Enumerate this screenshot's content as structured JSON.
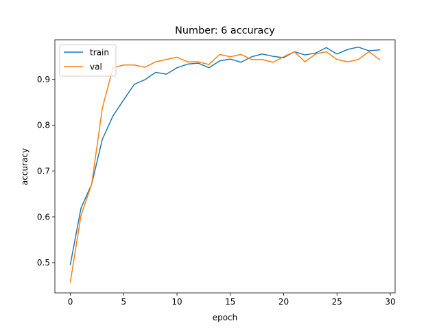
{
  "chart_data": {
    "type": "line",
    "title": "Number: 6 accuracy",
    "xlabel": "epoch",
    "ylabel": "accuracy",
    "xlim": [
      -1.45,
      30.45
    ],
    "ylim": [
      0.434,
      0.986
    ],
    "xticks": [
      0,
      5,
      10,
      15,
      20,
      25,
      30
    ],
    "yticks": [
      0.5,
      0.6,
      0.7,
      0.8,
      0.9
    ],
    "ytick_labels": [
      "0.5",
      "0.6",
      "0.7",
      "0.8",
      "0.9"
    ],
    "legend_position": "upper-left",
    "grid": false,
    "x": [
      0,
      1,
      2,
      3,
      4,
      5,
      6,
      7,
      8,
      9,
      10,
      11,
      12,
      13,
      14,
      15,
      16,
      17,
      18,
      19,
      20,
      21,
      22,
      23,
      24,
      25,
      26,
      27,
      28,
      29
    ],
    "series": [
      {
        "name": "train",
        "color": "#1f77b4",
        "values": [
          0.496,
          0.619,
          0.671,
          0.769,
          0.82,
          0.855,
          0.889,
          0.899,
          0.915,
          0.911,
          0.925,
          0.933,
          0.935,
          0.925,
          0.94,
          0.944,
          0.937,
          0.949,
          0.955,
          0.95,
          0.947,
          0.96,
          0.953,
          0.957,
          0.969,
          0.955,
          0.965,
          0.97,
          0.962,
          0.964
        ]
      },
      {
        "name": "val",
        "color": "#ff7f0e",
        "values": [
          0.458,
          0.603,
          0.671,
          0.837,
          0.925,
          0.931,
          0.931,
          0.926,
          0.938,
          0.943,
          0.948,
          0.938,
          0.938,
          0.932,
          0.954,
          0.949,
          0.954,
          0.943,
          0.943,
          0.937,
          0.949,
          0.96,
          0.938,
          0.955,
          0.96,
          0.943,
          0.938,
          0.943,
          0.96,
          0.943
        ]
      }
    ]
  }
}
